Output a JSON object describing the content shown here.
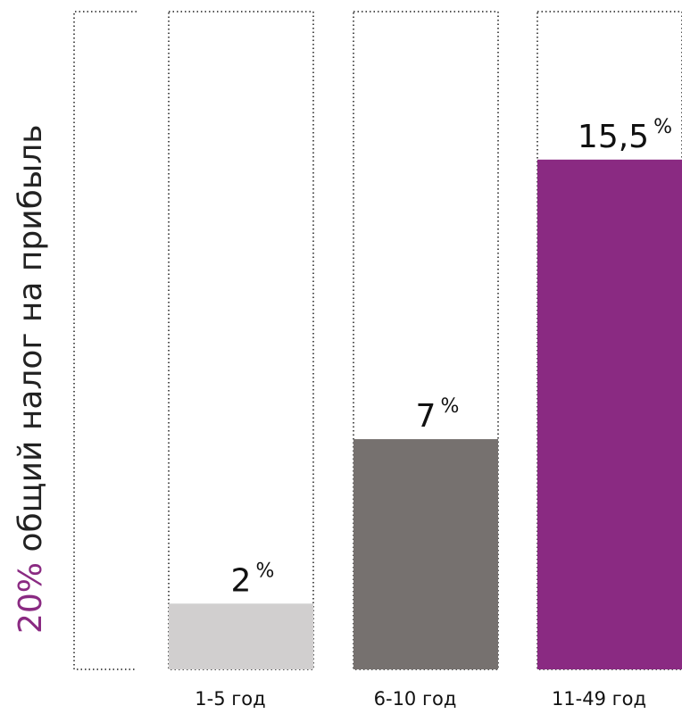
{
  "chart_data": {
    "type": "bar",
    "title_rotated": {
      "highlight": "20%",
      "rest": " общий налог на прибыль",
      "highlight_color": "#8a2a82",
      "text_color": "#222222"
    },
    "reference_value": 20,
    "categories": [
      "1-5 год",
      "6-10 год",
      "11-49 год"
    ],
    "values": [
      2,
      7,
      15.5
    ],
    "value_labels": [
      "2",
      "7",
      "15,5"
    ],
    "unit": "%",
    "colors": [
      "#d1cfcf",
      "#76716f",
      "#8a2a82"
    ],
    "ylim": [
      0,
      20
    ],
    "grid": false,
    "legend": "none"
  }
}
